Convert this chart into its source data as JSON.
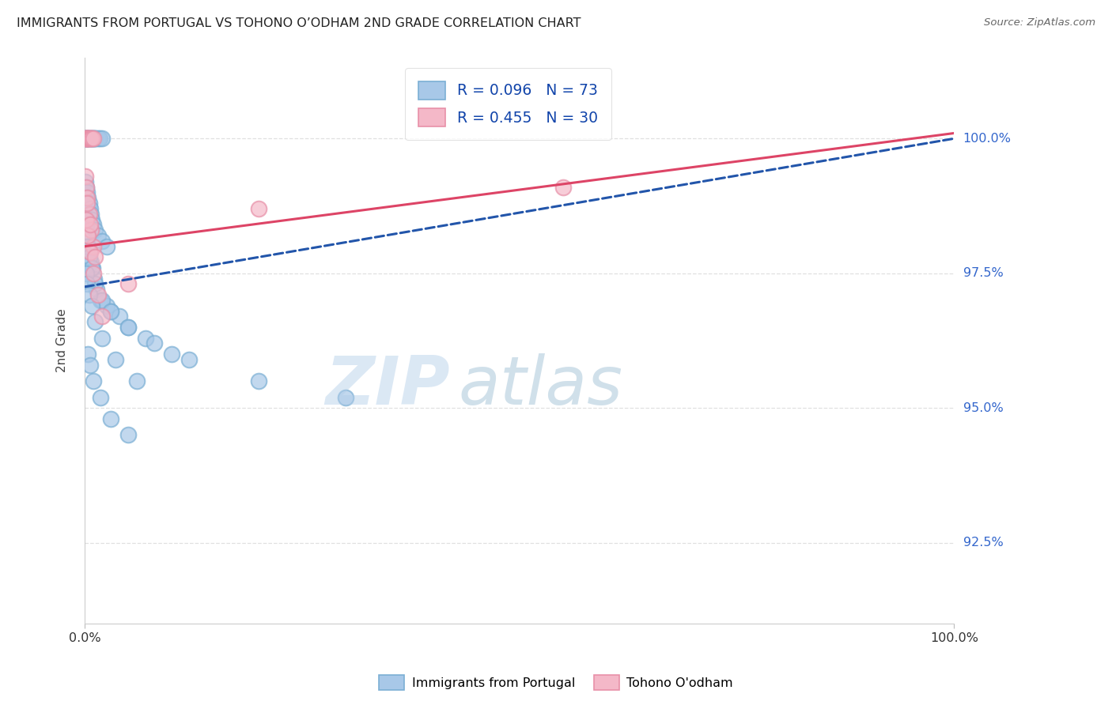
{
  "title": "IMMIGRANTS FROM PORTUGAL VS TOHONO O’ODHAM 2ND GRADE CORRELATION CHART",
  "source_text": "Source: ZipAtlas.com",
  "ylabel": "2nd Grade",
  "xticklabels": [
    "0.0%",
    "100.0%"
  ],
  "yticklabels": [
    "92.5%",
    "95.0%",
    "97.5%",
    "100.0%"
  ],
  "xlim": [
    0.0,
    100.0
  ],
  "ylim": [
    91.0,
    101.5
  ],
  "yticks": [
    92.5,
    95.0,
    97.5,
    100.0
  ],
  "legend_r1": "R = 0.096",
  "legend_n1": "N = 73",
  "legend_r2": "R = 0.455",
  "legend_n2": "N = 30",
  "blue_color": "#a8c8e8",
  "blue_edge_color": "#7bafd4",
  "pink_color": "#f4b8c8",
  "pink_edge_color": "#e890a8",
  "blue_line_color": "#2255aa",
  "pink_line_color": "#dd4466",
  "blue_scatter_x": [
    0.1,
    0.15,
    0.2,
    0.25,
    0.3,
    0.35,
    0.4,
    0.5,
    0.6,
    0.7,
    0.8,
    0.9,
    1.0,
    1.1,
    1.2,
    1.3,
    1.5,
    1.7,
    2.0,
    0.1,
    0.2,
    0.3,
    0.4,
    0.5,
    0.6,
    0.7,
    0.8,
    1.0,
    1.2,
    1.5,
    2.0,
    2.5,
    0.1,
    0.2,
    0.3,
    0.4,
    0.5,
    0.7,
    0.9,
    1.1,
    1.4,
    1.8,
    2.5,
    3.0,
    4.0,
    5.0,
    7.0,
    10.0,
    0.3,
    0.5,
    0.8,
    1.2,
    2.0,
    3.0,
    5.0,
    8.0,
    12.0,
    20.0,
    30.0,
    0.2,
    0.3,
    0.5,
    0.8,
    1.2,
    2.0,
    3.5,
    6.0,
    0.4,
    0.6,
    1.0,
    1.8,
    3.0,
    5.0
  ],
  "blue_scatter_y": [
    100.0,
    100.0,
    100.0,
    100.0,
    100.0,
    100.0,
    100.0,
    100.0,
    100.0,
    100.0,
    100.0,
    100.0,
    100.0,
    100.0,
    100.0,
    100.0,
    100.0,
    100.0,
    100.0,
    99.2,
    99.1,
    99.0,
    98.9,
    98.8,
    98.7,
    98.6,
    98.5,
    98.4,
    98.3,
    98.2,
    98.1,
    98.0,
    98.5,
    98.4,
    98.2,
    98.0,
    97.9,
    97.7,
    97.6,
    97.4,
    97.2,
    97.0,
    96.9,
    96.8,
    96.7,
    96.5,
    96.3,
    96.0,
    98.0,
    97.8,
    97.6,
    97.3,
    97.0,
    96.8,
    96.5,
    96.2,
    95.9,
    95.5,
    95.2,
    97.5,
    97.3,
    97.1,
    96.9,
    96.6,
    96.3,
    95.9,
    95.5,
    96.0,
    95.8,
    95.5,
    95.2,
    94.8,
    94.5
  ],
  "pink_scatter_x": [
    0.1,
    0.15,
    0.2,
    0.25,
    0.3,
    0.35,
    0.4,
    0.5,
    0.6,
    0.7,
    0.8,
    1.0,
    0.1,
    0.2,
    0.3,
    0.5,
    0.7,
    1.0,
    0.2,
    0.4,
    0.6,
    1.0,
    1.5,
    2.0,
    0.3,
    0.6,
    1.2,
    5.0,
    20.0,
    55.0
  ],
  "pink_scatter_y": [
    100.0,
    100.0,
    100.0,
    100.0,
    100.0,
    100.0,
    100.0,
    100.0,
    100.0,
    100.0,
    100.0,
    100.0,
    99.3,
    99.1,
    98.9,
    98.6,
    98.3,
    98.0,
    98.5,
    98.2,
    97.9,
    97.5,
    97.1,
    96.7,
    98.8,
    98.4,
    97.8,
    97.3,
    98.7,
    99.1
  ],
  "watermark_zip": "ZIP",
  "watermark_atlas": "atlas",
  "background_color": "#ffffff",
  "grid_color": "#dddddd"
}
